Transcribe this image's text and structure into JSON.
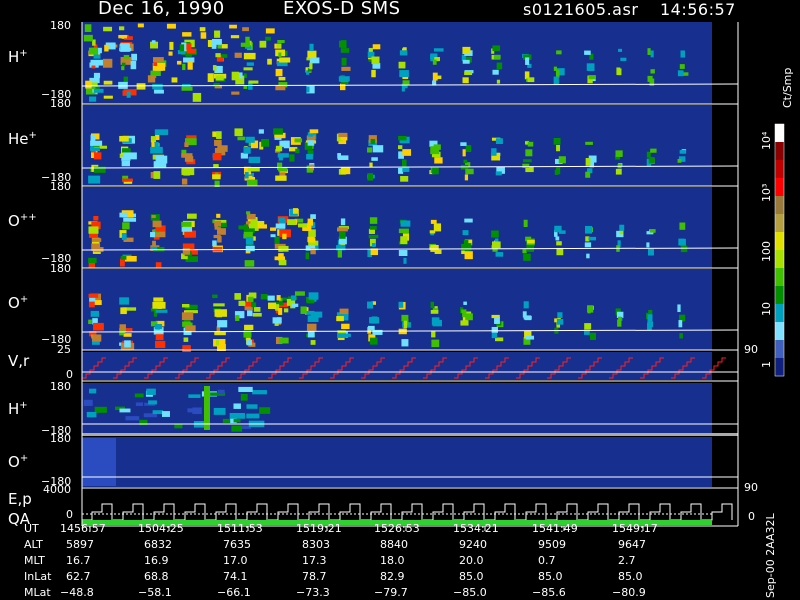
{
  "header": {
    "date": "Dec 16, 1990",
    "instrument": "EXOS-D SMS",
    "file": "s0121605.asr",
    "time": "14:56:57"
  },
  "colorbar": {
    "unit": "Ct/Smp",
    "labels": [
      "10⁴",
      "10³",
      "100",
      "10",
      "1"
    ],
    "colors": [
      "#ffffff",
      "#8b0000",
      "#c00000",
      "#ff0000",
      "#9a7a3a",
      "#b4a040",
      "#e0e000",
      "#a8e000",
      "#40c000",
      "#009000",
      "#00a0c0",
      "#80e0ff",
      "#4060c0",
      "#102080"
    ]
  },
  "panels": [
    {
      "name": "H+",
      "base": "H",
      "sup": "+",
      "ytop": "180",
      "ybot": "−180"
    },
    {
      "name": "He+",
      "base": "He",
      "sup": "+",
      "ytop": "180",
      "ybot": "−180"
    },
    {
      "name": "O++",
      "base": "O",
      "sup": "++",
      "ytop": "180",
      "ybot": "−180"
    },
    {
      "name": "O+",
      "base": "O",
      "sup": "+",
      "ytop": "180",
      "ybot": "−180"
    }
  ],
  "vr_panel": {
    "label": "V,r",
    "ytop": "25",
    "yzero": "0",
    "right_label": "90"
  },
  "lower_panels": [
    {
      "name": "H+",
      "base": "H",
      "sup": "+",
      "ytop": "180",
      "ybot": "−180"
    },
    {
      "name": "O+",
      "base": "O",
      "sup": "+",
      "ytop": "180",
      "ybot": "−180",
      "right_label": "90"
    }
  ],
  "ep_panel": {
    "label1": "E,p",
    "label2": "QA",
    "ytop": "4000",
    "yzero": "0",
    "right_label": "0"
  },
  "footer_label": "Sep-00  2AA32L",
  "ephemeris": {
    "rows": [
      {
        "label": "UT",
        "values": [
          "1456:57",
          "1504:25",
          "1511:53",
          "1519:21",
          "1526:53",
          "1534:21",
          "1541:49",
          "1549:17"
        ]
      },
      {
        "label": "ALT",
        "values": [
          "5897",
          "6832",
          "7635",
          "8303",
          "8840",
          "9240",
          "9509",
          "9647"
        ]
      },
      {
        "label": "MLT",
        "values": [
          "16.7",
          "16.9",
          "17.0",
          "17.3",
          "18.0",
          "20.0",
          "0.7",
          "2.7"
        ]
      },
      {
        "label": "InLat",
        "values": [
          "62.7",
          "68.8",
          "74.1",
          "78.7",
          "82.9",
          "85.0",
          "85.0",
          "85.0"
        ]
      },
      {
        "label": "MLat",
        "values": [
          "−48.8",
          "−58.1",
          "−66.1",
          "−73.3",
          "−79.7",
          "−85.0",
          "−85.6",
          "−80.9"
        ]
      }
    ]
  },
  "chart_data": {
    "type": "heatmap",
    "title": "Dec 16, 1990   EXOS-D SMS",
    "x_ticks": [
      "1456:57",
      "1504:25",
      "1511:53",
      "1519:21",
      "1526:53",
      "1534:21",
      "1541:49",
      "1549:17"
    ],
    "y_range": [
      -180,
      180
    ],
    "species": [
      "H+",
      "He+",
      "O++",
      "O+"
    ],
    "color_scale_log": true,
    "color_range": [
      1,
      10000
    ]
  }
}
